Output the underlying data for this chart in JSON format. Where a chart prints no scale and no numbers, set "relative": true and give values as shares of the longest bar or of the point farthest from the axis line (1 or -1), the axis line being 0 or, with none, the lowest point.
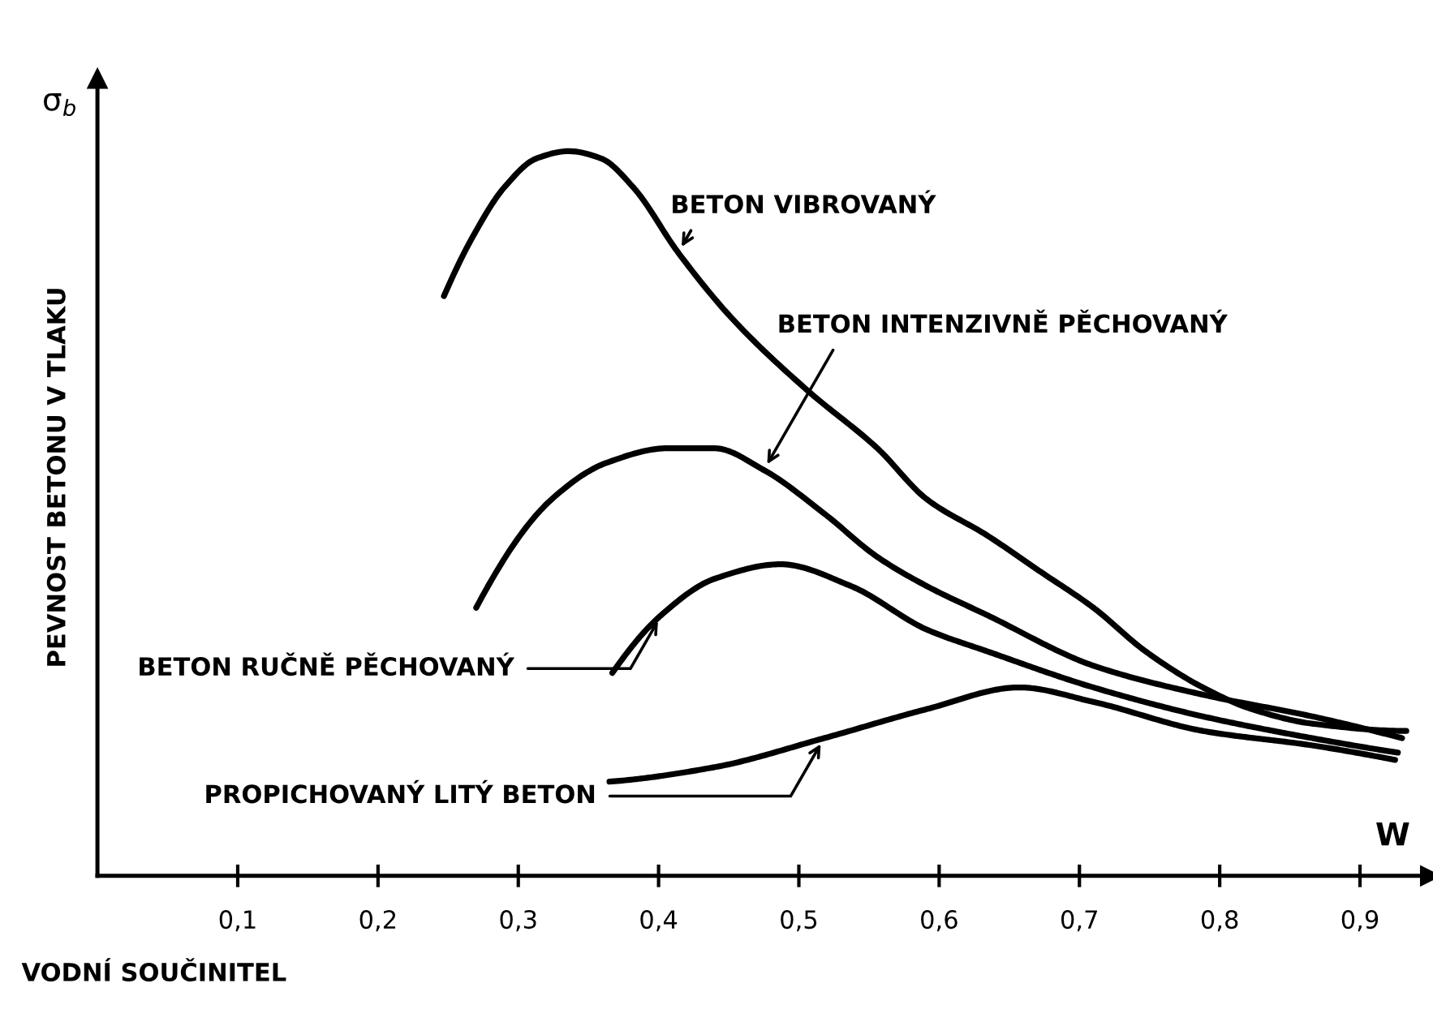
{
  "chart_data": {
    "type": "line",
    "relative": true,
    "xlabel": "VODNÍ SOUČINITEL",
    "ylabel": "PEVNOST BETONU V TLAKU",
    "annotations": [
      "σ$_{b}$",
      "W"
    ],
    "xlim": [
      0,
      0.95
    ],
    "xticks": [
      {
        "value": 0.1,
        "label": "0,1"
      },
      {
        "value": 0.2,
        "label": "0,2"
      },
      {
        "value": 0.3,
        "label": "0,3"
      },
      {
        "value": 0.4,
        "label": "0,4"
      },
      {
        "value": 0.5,
        "label": "0,5"
      },
      {
        "value": 0.6,
        "label": "0,6"
      },
      {
        "value": 0.7,
        "label": "0,7"
      },
      {
        "value": 0.8,
        "label": "0,8"
      },
      {
        "value": 0.9,
        "label": "0,9"
      }
    ],
    "tick_labels": "x",
    "grid": false,
    "legend": false,
    "marker": "none",
    "line_style": "solid",
    "series": [
      {
        "name": "BETON VIBROVANÝ",
        "color": "#000000",
        "x": [
          0.247,
          0.267,
          0.29,
          0.313,
          0.336,
          0.359,
          0.382,
          0.414,
          0.452,
          0.506,
          0.556,
          0.591,
          0.634,
          0.672,
          0.71,
          0.747,
          0.788,
          0.823,
          0.866,
          0.933
        ],
        "values": [
          0.8,
          0.88,
          0.95,
          0.99,
          1.0,
          0.99,
          0.95,
          0.86,
          0.77,
          0.67,
          0.59,
          0.52,
          0.47,
          0.42,
          0.37,
          0.31,
          0.26,
          0.23,
          0.21,
          0.2
        ]
      },
      {
        "name": "BETON INTENZIVNĚ PĚCHOVANÝ",
        "color": "#000000",
        "x": [
          0.27,
          0.324,
          0.363,
          0.406,
          0.44,
          0.475,
          0.518,
          0.556,
          0.591,
          0.634,
          0.71,
          0.788,
          0.866,
          0.93
        ],
        "values": [
          0.37,
          0.52,
          0.57,
          0.59,
          0.59,
          0.56,
          0.5,
          0.44,
          0.4,
          0.36,
          0.29,
          0.25,
          0.22,
          0.19
        ]
      },
      {
        "name": "BETON RUČNĚ PĚCHOVANÝ",
        "color": "#000000",
        "x": [
          0.367,
          0.402,
          0.44,
          0.487,
          0.537,
          0.591,
          0.634,
          0.71,
          0.788,
          0.866,
          0.927
        ],
        "values": [
          0.28,
          0.36,
          0.41,
          0.43,
          0.4,
          0.34,
          0.31,
          0.26,
          0.22,
          0.19,
          0.17
        ]
      },
      {
        "name": "PROPICHOVANÝ LITÝ BETON",
        "color": "#000000",
        "x": [
          0.365,
          0.44,
          0.518,
          0.591,
          0.657,
          0.71,
          0.788,
          0.866,
          0.925
        ],
        "values": [
          0.13,
          0.15,
          0.19,
          0.23,
          0.26,
          0.24,
          0.2,
          0.18,
          0.16
        ]
      }
    ]
  }
}
